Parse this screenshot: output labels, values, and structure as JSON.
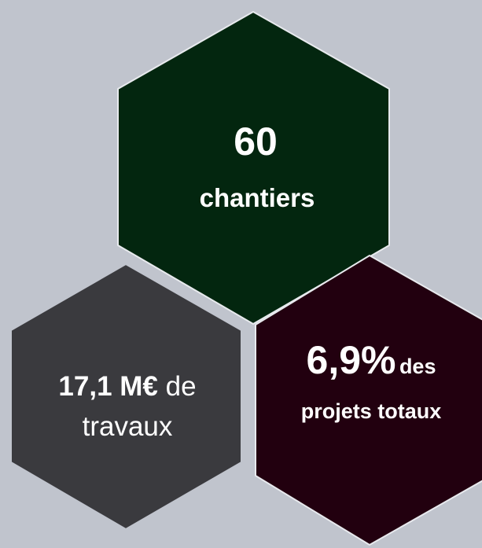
{
  "hexagons": [
    {
      "figure": "60",
      "label": "chantiers"
    },
    {
      "figure": "17,1 M€",
      "connector": "de",
      "label": "travaux"
    },
    {
      "figure": "6,9%",
      "connector": "des",
      "label": "projets totaux"
    }
  ]
}
